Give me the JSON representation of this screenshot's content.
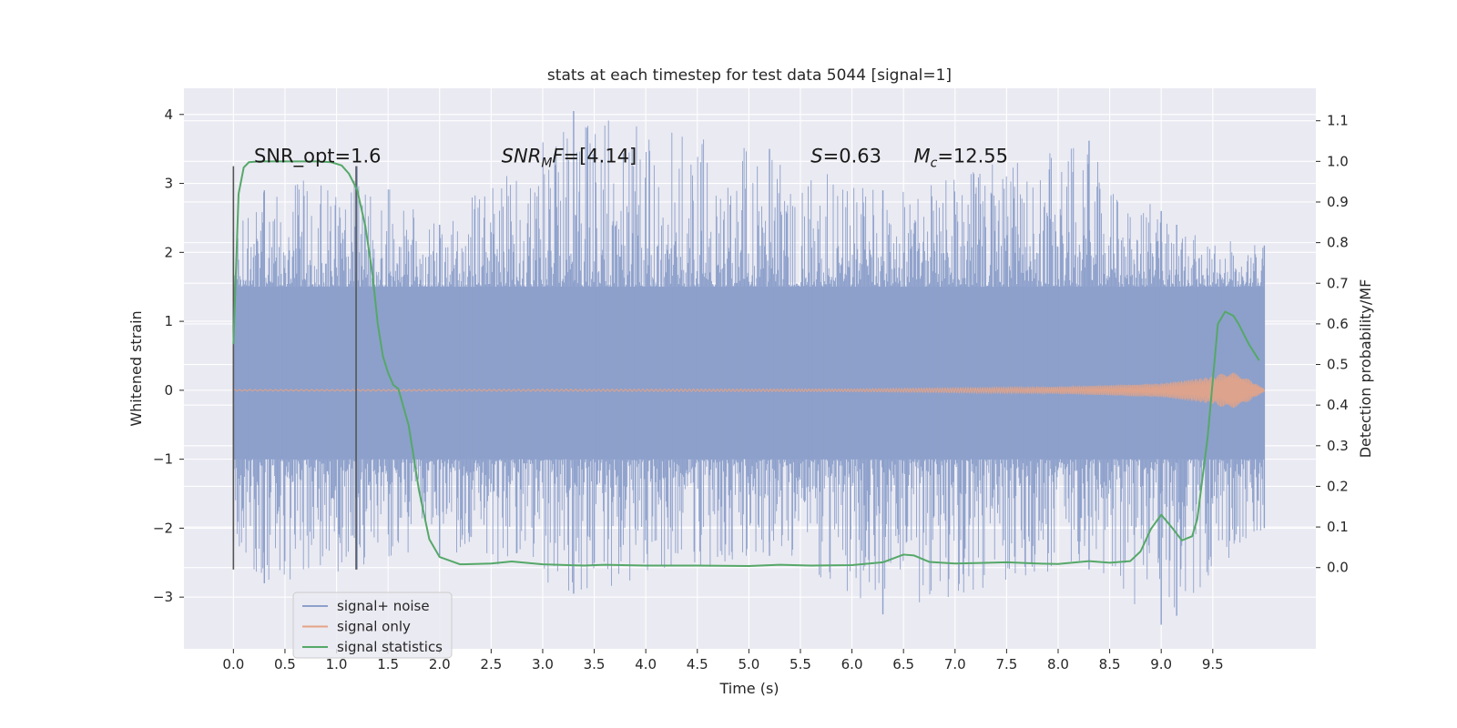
{
  "chart_data": {
    "type": "line",
    "title": "stats at each timestep for test data 5044 [signal=1]",
    "xlabel": "Time (s)",
    "ylabel": "Whitened strain",
    "y2label": "Detection probability/MF",
    "xlim": [
      -0.48,
      10.5
    ],
    "ylim": [
      -3.75,
      4.38
    ],
    "y2lim": [
      -0.2,
      1.18
    ],
    "xticks": [
      0.0,
      0.5,
      1.0,
      1.5,
      2.0,
      2.5,
      3.0,
      3.5,
      4.0,
      4.5,
      5.0,
      5.5,
      6.0,
      6.5,
      7.0,
      7.5,
      8.0,
      8.5,
      9.0,
      9.5
    ],
    "xtick_labels": [
      "0.0",
      "0.5",
      "1.0",
      "1.5",
      "2.0",
      "2.5",
      "3.0",
      "3.5",
      "4.0",
      "4.5",
      "5.0",
      "5.5",
      "6.0",
      "6.5",
      "7.0",
      "7.5",
      "8.0",
      "8.5",
      "9.0",
      "9.5"
    ],
    "yticks": [
      -3,
      -2,
      -1,
      0,
      1,
      2,
      3,
      4
    ],
    "ytick_labels": [
      "−3",
      "−2",
      "−1",
      "0",
      "1",
      "2",
      "3",
      "4"
    ],
    "y2ticks": [
      0.0,
      0.1,
      0.2,
      0.3,
      0.4,
      0.5,
      0.6,
      0.7,
      0.8,
      0.9,
      1.0,
      1.1
    ],
    "y2tick_labels": [
      "0.0",
      "0.1",
      "0.2",
      "0.3",
      "0.4",
      "0.5",
      "0.6",
      "0.7",
      "0.8",
      "0.9",
      "1.0",
      "1.1"
    ],
    "grid": true,
    "legend_position": "lower-left",
    "annotations": [
      {
        "text_plain": "SNR_opt=1.6",
        "x": 0.2,
        "y2": 1.0
      },
      {
        "math_var": "SNR",
        "math_sub": "M",
        "math_var2": "F",
        "text_rest": "=[4.14]",
        "x": 2.6,
        "y2": 1.0
      },
      {
        "math_var": "S",
        "text_rest": "=0.63",
        "x": 5.6,
        "y2": 1.0
      },
      {
        "math_var": "M",
        "math_sub": "c",
        "text_rest": "=12.55",
        "x": 6.6,
        "y2": 1.0
      }
    ],
    "vertical_lines": [
      {
        "x": 0.0,
        "y_range": [
          -2.6,
          3.25
        ]
      },
      {
        "x": 1.19,
        "y_range": [
          -2.6,
          3.25
        ]
      }
    ],
    "series": [
      {
        "name": "signal+ noise",
        "axis": "left",
        "color": "#8da0cb",
        "kind": "noise_band",
        "x_range": [
          0.0,
          10.0
        ],
        "core_range": [
          -1.0,
          1.5
        ],
        "envelope": [
          {
            "x": 0.0,
            "hi": 2.3,
            "lo": -2.2
          },
          {
            "x": 0.3,
            "hi": 2.9,
            "lo": -2.8
          },
          {
            "x": 1.2,
            "hi": 3.25,
            "lo": -2.6
          },
          {
            "x": 2.0,
            "hi": 2.4,
            "lo": -2.4
          },
          {
            "x": 3.3,
            "hi": 4.05,
            "lo": -2.95
          },
          {
            "x": 5.2,
            "hi": 3.5,
            "lo": -2.4
          },
          {
            "x": 6.3,
            "hi": 2.9,
            "lo": -3.25
          },
          {
            "x": 8.3,
            "hi": 3.62,
            "lo": -2.6
          },
          {
            "x": 9.0,
            "hi": 2.6,
            "lo": -3.4
          },
          {
            "x": 9.15,
            "hi": 2.4,
            "lo": -3.27
          },
          {
            "x": 10.0,
            "hi": 2.1,
            "lo": -2.0
          }
        ]
      },
      {
        "name": "signal only",
        "axis": "left",
        "color": "#e5a385",
        "kind": "chirp",
        "x_range": [
          0.0,
          10.0
        ],
        "amplitude_points": [
          {
            "x": 0.0,
            "amp": 0.01
          },
          {
            "x": 6.0,
            "amp": 0.02
          },
          {
            "x": 8.0,
            "amp": 0.05
          },
          {
            "x": 9.0,
            "amp": 0.1
          },
          {
            "x": 9.5,
            "amp": 0.2
          },
          {
            "x": 9.7,
            "amp": 0.3
          },
          {
            "x": 10.0,
            "amp": 0.02
          }
        ]
      },
      {
        "name": "signal statistics",
        "axis": "right",
        "color": "#55a868",
        "x": [
          0.0,
          0.05,
          0.1,
          0.15,
          0.25,
          0.4,
          0.6,
          0.8,
          0.95,
          1.05,
          1.12,
          1.2,
          1.28,
          1.35,
          1.4,
          1.45,
          1.5,
          1.55,
          1.6,
          1.7,
          1.8,
          1.9,
          2.0,
          2.2,
          2.5,
          2.7,
          3.0,
          3.4,
          3.6,
          4.0,
          4.5,
          5.0,
          5.3,
          5.6,
          6.0,
          6.3,
          6.5,
          6.6,
          6.75,
          7.0,
          7.2,
          7.5,
          7.8,
          8.0,
          8.3,
          8.5,
          8.7,
          8.8,
          8.9,
          9.0,
          9.1,
          9.2,
          9.3,
          9.35,
          9.45,
          9.55,
          9.62,
          9.7,
          9.75,
          9.85,
          9.95
        ],
        "y": [
          0.55,
          0.92,
          0.985,
          0.998,
          1.0,
          1.0,
          1.0,
          1.0,
          0.998,
          0.99,
          0.97,
          0.93,
          0.84,
          0.72,
          0.6,
          0.52,
          0.48,
          0.45,
          0.44,
          0.35,
          0.19,
          0.07,
          0.026,
          0.008,
          0.01,
          0.015,
          0.008,
          0.005,
          0.007,
          0.005,
          0.005,
          0.004,
          0.007,
          0.005,
          0.006,
          0.013,
          0.032,
          0.03,
          0.014,
          0.01,
          0.011,
          0.013,
          0.01,
          0.009,
          0.016,
          0.012,
          0.016,
          0.04,
          0.095,
          0.13,
          0.1,
          0.067,
          0.077,
          0.12,
          0.32,
          0.6,
          0.63,
          0.62,
          0.6,
          0.55,
          0.51
        ]
      }
    ]
  }
}
